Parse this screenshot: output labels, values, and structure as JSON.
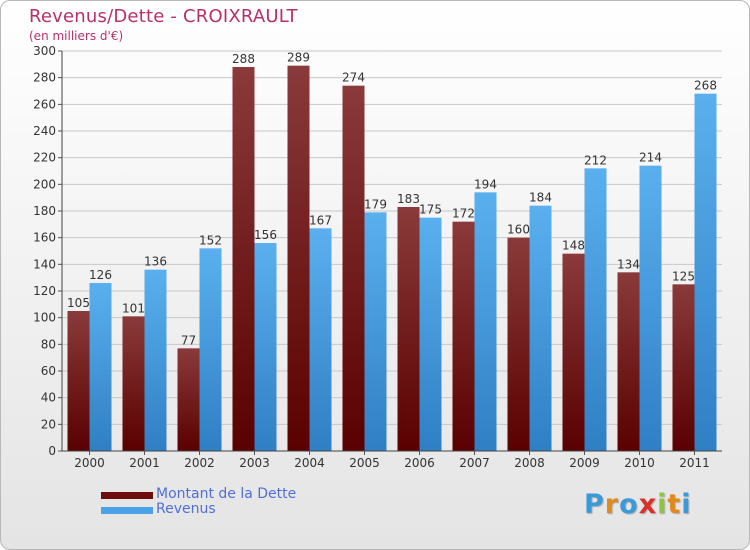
{
  "title": "Revenus/Dette - CROIXRAULT",
  "subtitle": "(en milliers d'€)",
  "colors": {
    "debt": "#6e0d0d",
    "debt_light": "#8a3a3a",
    "revenue": "#4aa3e6",
    "revenue_dark": "#2f7fc4",
    "title": "#b8306a"
  },
  "chart_data": {
    "type": "bar",
    "title": "Revenus/Dette - CROIXRAULT",
    "ylabel": "(en milliers d'€)",
    "xlabel": "",
    "categories": [
      "2000",
      "2001",
      "2002",
      "2003",
      "2004",
      "2005",
      "2006",
      "2007",
      "2008",
      "2009",
      "2010",
      "2011"
    ],
    "series": [
      {
        "name": "Montant de la Dette",
        "values": [
          105,
          101,
          77,
          288,
          289,
          274,
          183,
          172,
          160,
          148,
          134,
          125
        ]
      },
      {
        "name": "Revenus",
        "values": [
          126,
          136,
          152,
          156,
          167,
          179,
          175,
          194,
          184,
          212,
          214,
          268
        ]
      }
    ],
    "ylim": [
      0,
      300
    ],
    "yticks": [
      0,
      20,
      40,
      60,
      80,
      100,
      120,
      140,
      160,
      180,
      200,
      220,
      240,
      260,
      280,
      300
    ],
    "grid": true,
    "legend": "bottom-left"
  },
  "logo": {
    "letters": [
      "P",
      "r",
      "o",
      "x",
      "i",
      "t",
      "i"
    ],
    "colors": [
      "#3a9ad9",
      "#e08a1e",
      "#3a9ad9",
      "#d8322a",
      "#8cc63f",
      "#e08a1e",
      "#3a9ad9"
    ]
  }
}
